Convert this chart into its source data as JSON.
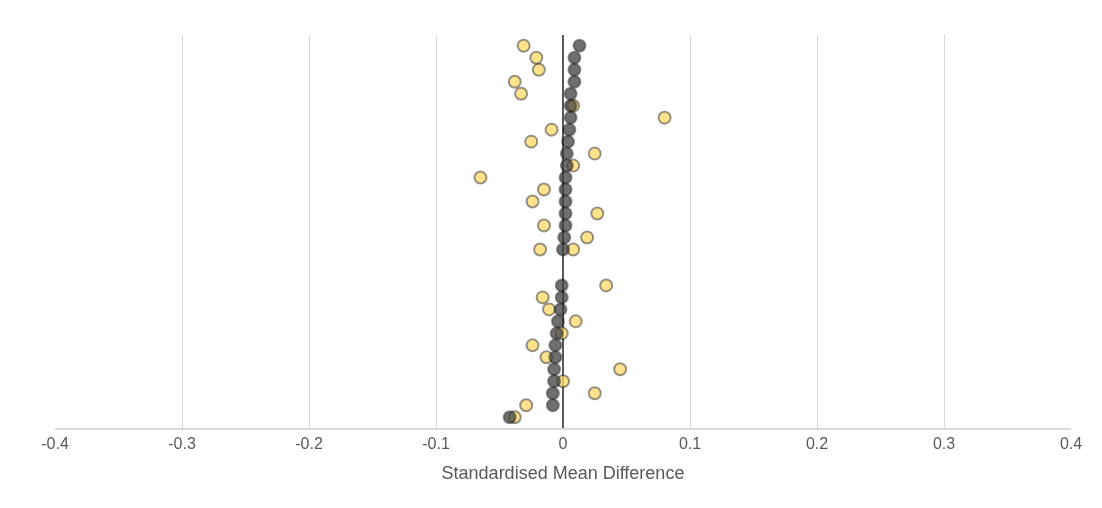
{
  "chart_data": {
    "type": "scatter",
    "orientation": "horizontal",
    "xlabel": "Standardised Mean Difference",
    "categories": [
      null,
      null,
      null,
      null,
      null,
      null,
      null,
      null,
      null,
      null,
      null,
      null,
      null,
      null,
      null,
      null,
      null,
      null,
      null,
      null,
      null,
      null,
      null,
      null,
      null,
      null,
      null,
      null,
      null,
      null,
      null,
      null
    ],
    "series": [
      {
        "color": "#ffd966",
        "values": [
          -0.031,
          -0.021,
          -0.019,
          -0.038,
          -0.033,
          0.008,
          0.08,
          -0.009,
          -0.025,
          0.025,
          0.008,
          -0.065,
          -0.015,
          -0.024,
          0.027,
          -0.015,
          0.019,
          -0.018,
          null,
          null,
          0.034,
          -0.016,
          -0.011,
          0.01,
          -0.001,
          -0.024,
          -0.013,
          0.045,
          0.0,
          0.025,
          -0.029,
          -0.038
        ]
      },
      {
        "color": "#ffd966",
        "values": [
          null,
          null,
          null,
          null,
          null,
          null,
          null,
          null,
          null,
          null,
          null,
          null,
          null,
          null,
          null,
          null,
          null,
          0.008,
          null,
          null,
          null,
          null,
          null,
          null,
          null,
          null,
          null,
          null,
          null,
          null,
          null,
          null
        ]
      },
      {
        "color": "#404040",
        "values": [
          0.013,
          0.009,
          0.009,
          0.009,
          0.006,
          0.006,
          0.006,
          0.005,
          0.004,
          0.003,
          0.003,
          0.002,
          0.002,
          0.002,
          0.002,
          0.002,
          0.001,
          0.0,
          null,
          null,
          -0.001,
          -0.001,
          -0.002,
          -0.004,
          -0.005,
          -0.006,
          -0.006,
          -0.007,
          -0.007,
          -0.008,
          -0.008,
          -0.042
        ]
      }
    ],
    "xlim": [
      -0.4,
      0.4
    ],
    "xticks": [
      -0.4,
      -0.3,
      -0.2,
      -0.1,
      0,
      0.1,
      0.2,
      0.3,
      0.4
    ],
    "grid": "x",
    "tick_labels": "x",
    "marker": "circle"
  }
}
